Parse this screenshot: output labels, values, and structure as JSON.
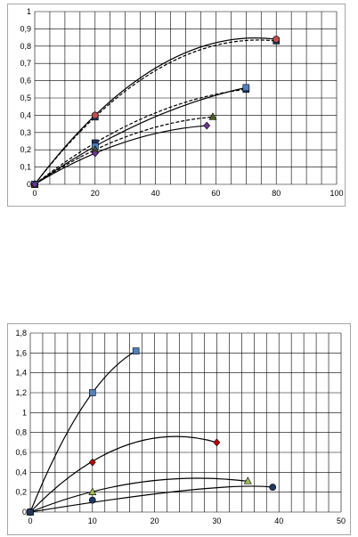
{
  "chart_data": [
    {
      "type": "scatter",
      "title": "",
      "xlabel": "",
      "ylabel": "",
      "xlim": [
        0,
        100
      ],
      "ylim": [
        0,
        1
      ],
      "x_ticks": [
        "0",
        "20",
        "40",
        "60",
        "80",
        "100"
      ],
      "y_ticks": [
        "0",
        "0,1",
        "0,2",
        "0,3",
        "0,4",
        "0,5",
        "0,6",
        "0,7",
        "0,8",
        "0,9",
        "1"
      ],
      "grid": true,
      "legend": "none",
      "series": [
        {
          "marker": "square",
          "color": "#1f3864",
          "solid_peak": [
            78,
            0.845
          ],
          "points": [
            {
              "x": 0,
              "y": 0
            },
            {
              "x": 20,
              "y": 0.39
            },
            {
              "x": 80,
              "y": 0.83
            }
          ]
        },
        {
          "marker": "circle",
          "color": "#c0504d",
          "points": [
            {
              "x": 0,
              "y": 0
            },
            {
              "x": 20,
              "y": 0.4
            },
            {
              "x": 80,
              "y": 0.84
            }
          ]
        },
        {
          "marker": "square",
          "color": "#1f3864",
          "points": [
            {
              "x": 0,
              "y": 0
            },
            {
              "x": 20,
              "y": 0.24
            },
            {
              "x": 70,
              "y": 0.55
            }
          ]
        },
        {
          "marker": "square",
          "color": "#4f81bd",
          "points": [
            {
              "x": 0,
              "y": 0
            },
            {
              "x": 20,
              "y": 0.22
            },
            {
              "x": 70,
              "y": 0.56
            }
          ]
        },
        {
          "marker": "triangle",
          "color": "#4f6228",
          "points": [
            {
              "x": 0,
              "y": 0
            },
            {
              "x": 20,
              "y": 0.2
            },
            {
              "x": 59,
              "y": 0.39
            }
          ]
        },
        {
          "marker": "diamond",
          "color": "#7030a0",
          "points": [
            {
              "x": 0,
              "y": 0
            },
            {
              "x": 20,
              "y": 0.18
            },
            {
              "x": 57,
              "y": 0.34
            }
          ]
        }
      ]
    },
    {
      "type": "scatter",
      "title": "",
      "xlabel": "",
      "ylabel": "",
      "xlim": [
        0,
        50
      ],
      "ylim": [
        0,
        1.8
      ],
      "x_ticks": [
        "0",
        "10",
        "20",
        "30",
        "40",
        "50"
      ],
      "y_ticks": [
        "0",
        "0,2",
        "0,4",
        "0,6",
        "0,8",
        "1",
        "1,2",
        "1,4",
        "1,6",
        "1,8"
      ],
      "grid": true,
      "legend": "none",
      "series": [
        {
          "marker": "square",
          "color": "#4f81bd",
          "points": [
            {
              "x": 0,
              "y": 0
            },
            {
              "x": 10,
              "y": 1.2
            },
            {
              "x": 17,
              "y": 1.62
            }
          ]
        },
        {
          "marker": "diamond",
          "color": "#c00000",
          "points": [
            {
              "x": 0,
              "y": 0
            },
            {
              "x": 10,
              "y": 0.5
            },
            {
              "x": 30,
              "y": 0.7
            }
          ],
          "peak": [
            23.5,
            0.76
          ]
        },
        {
          "marker": "triangle",
          "color": "#9bbb59",
          "points": [
            {
              "x": 0,
              "y": 0
            },
            {
              "x": 10,
              "y": 0.2
            },
            {
              "x": 35,
              "y": 0.31
            }
          ],
          "peak": [
            27,
            0.34
          ]
        },
        {
          "marker": "circle",
          "color": "#1f3864",
          "points": [
            {
              "x": 0,
              "y": 0
            },
            {
              "x": 10,
              "y": 0.12
            },
            {
              "x": 39,
              "y": 0.25
            }
          ],
          "peak": [
            36,
            0.26
          ]
        }
      ]
    }
  ]
}
